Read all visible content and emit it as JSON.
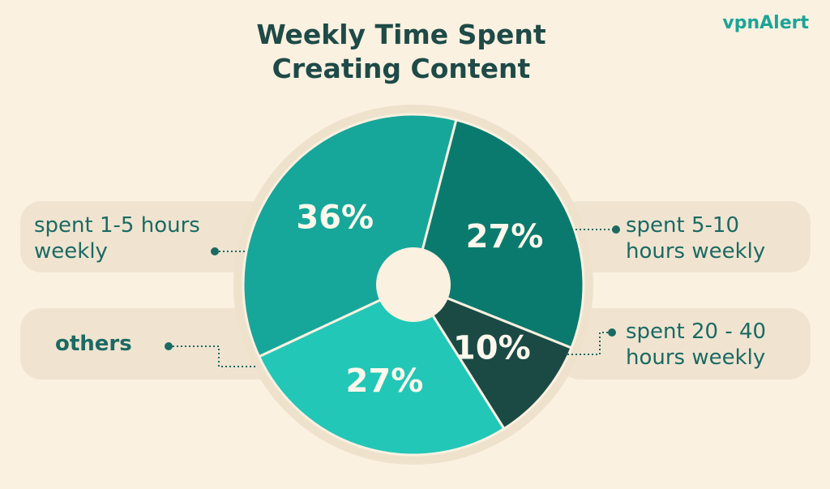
{
  "chart_data": {
    "type": "pie",
    "title": "Weekly Time Spent Creating Content",
    "categories": [
      "spent 1-5 hours weekly",
      "spent 5-10 hours weekly",
      "spent 20 - 40 hours weekly",
      "others"
    ],
    "values": [
      36,
      27,
      10,
      27
    ],
    "value_labels": [
      "36%",
      "27%",
      "10%",
      "27%"
    ],
    "colors": [
      "#16a79a",
      "#0b7a6e",
      "#1b4a45",
      "#22c7b7"
    ]
  },
  "brand": "vpnAlert"
}
